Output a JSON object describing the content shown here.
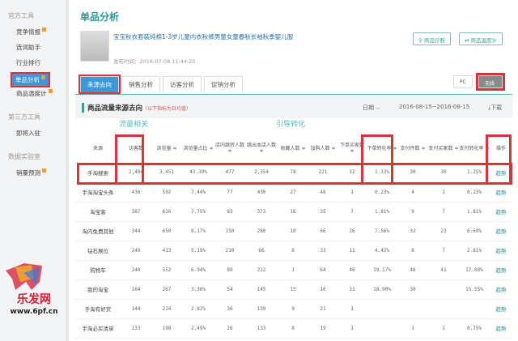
{
  "sidebar": {
    "groups": [
      {
        "label": "官方工具",
        "items": [
          {
            "label": "竞争情报",
            "badge": true
          },
          {
            "label": "选词助手"
          },
          {
            "label": "行业排行"
          },
          {
            "label": "单品分析",
            "active": true,
            "badge": true
          },
          {
            "label": "商品温度计",
            "badge": true
          }
        ]
      },
      {
        "label": "第三方工具",
        "items": [
          {
            "label": "即将入驻"
          }
        ]
      },
      {
        "label": "数据实验室",
        "items": [
          {
            "label": "销量预测",
            "badge": true
          }
        ]
      }
    ]
  },
  "header": {
    "title": "单品分析",
    "product_name": "宝宝秋衣套装纯棉1-3岁儿童内衣秋裤男童女童春秋长袖秋季婴儿服",
    "publish_time": "发布时间：2016-07-08 11:44:20",
    "buttons": [
      "商品诊断",
      "商品温度计"
    ]
  },
  "tabs": [
    {
      "label": "来源去向",
      "active": true
    },
    {
      "label": "销售分析"
    },
    {
      "label": "访客分析"
    },
    {
      "label": "促销分析"
    }
  ],
  "device": {
    "options": [
      "PC",
      "无线"
    ],
    "selected": "无线"
  },
  "section": {
    "title": "商品流量来源去向",
    "note": "（以下指标为日均值）",
    "date_label": "日期",
    "date_range": "2016-08-15~2016-08-15",
    "download": "下载"
  },
  "groups": [
    "流量相关",
    "引导转化"
  ],
  "columns": [
    "来源",
    "访客数",
    "浏览量 ≑",
    "浏览量占比 ≑",
    "店内跳转人数 ≑",
    "跳出本店人数 ≑",
    "收藏人数 ≑",
    "加购人数 ≑",
    "下单买家数 ≑",
    "下单转化率 ≑",
    "支付件数 ≑",
    "支付买家数 ≑",
    "支付转化率 ≑",
    "操作"
  ],
  "rows": [
    [
      "手淘搜索",
      "2,404",
      "3,451",
      "43.39%",
      "477",
      "2,354",
      "78",
      "221",
      "32",
      "1.33%",
      "30",
      "30",
      "1.25%",
      "趋势"
    ],
    [
      "手淘淘宝头条",
      "436",
      "592",
      "7.44%",
      "77",
      "430",
      "27",
      "48",
      "1",
      "0.23%",
      "4",
      "1",
      "0.23%",
      "趋势"
    ],
    [
      "淘宝客",
      "387",
      "616",
      "7.75%",
      "83",
      "373",
      "16",
      "35",
      "7",
      "1.81%",
      "9",
      "7",
      "1.81%",
      "趋势"
    ],
    [
      "淘内免费其他",
      "344",
      "650",
      "8.17%",
      "150",
      "280",
      "10",
      "66",
      "26",
      "7.56%",
      "32",
      "23",
      "6.69%",
      "趋势"
    ],
    [
      "钻石展位",
      "249",
      "413",
      "5.19%",
      "210",
      "66",
      "8",
      "33",
      "11",
      "4.42%",
      "8",
      "7",
      "2.81%",
      "趋势"
    ],
    [
      "购物车",
      "240",
      "552",
      "6.94%",
      "89",
      "212",
      "1",
      "64",
      "46",
      "19.17%",
      "46",
      "41",
      "17.08%",
      "趋势"
    ],
    [
      "我的淘宝",
      "164",
      "267",
      "3.36%",
      "54",
      "145",
      "15",
      "16",
      "31",
      "18.90%",
      "30",
      "",
      "15.55%",
      "趋势"
    ],
    [
      "手淘有好货",
      "144",
      "224",
      "2.82%",
      "36",
      "139",
      "9",
      "21",
      "1",
      "",
      "",
      "",
      "",
      "趋势"
    ],
    [
      "手淘必买清单",
      "133",
      "198",
      "2.49%",
      "26",
      "133",
      "8",
      "19",
      "1",
      "",
      "1",
      "1",
      "0.75%",
      "趋势"
    ]
  ],
  "watermark": {
    "text": "乐发网",
    "url": "www.6pf.cn"
  },
  "colors": {
    "accent": "#3a9ad9",
    "highlight": "#d9343a",
    "teal": "#2a9a9a"
  }
}
